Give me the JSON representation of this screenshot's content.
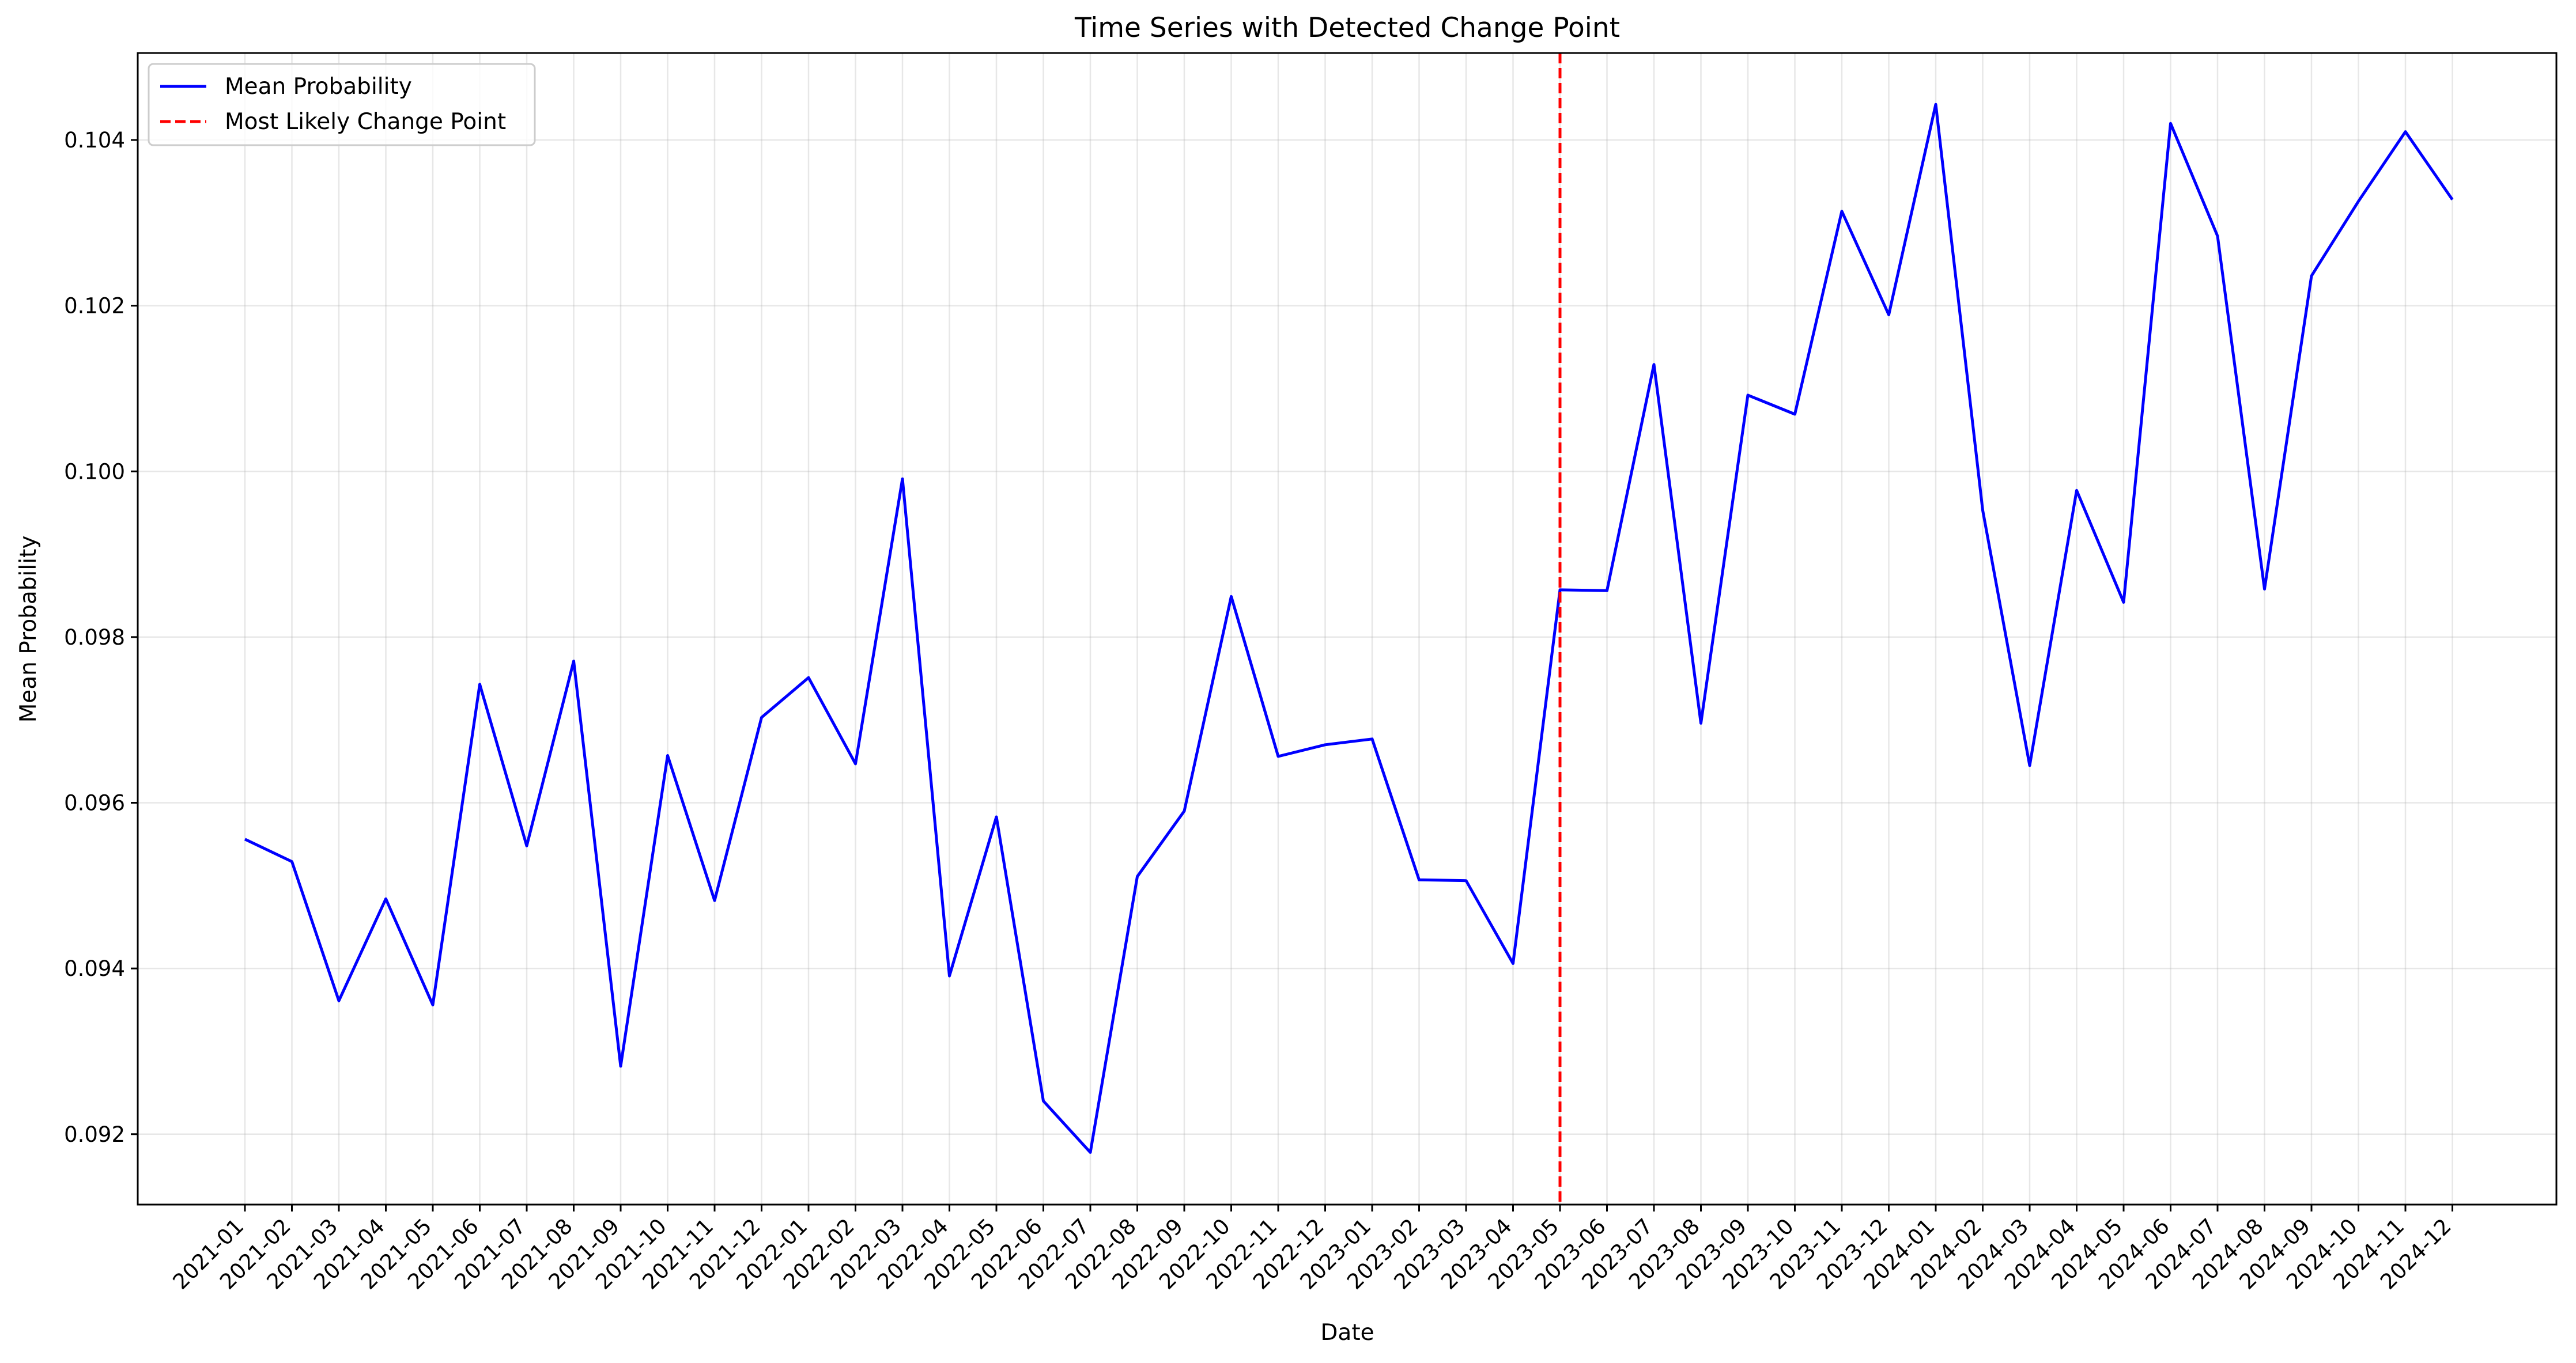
{
  "chart_data": {
    "type": "line",
    "title": "Time Series with Detected Change Point",
    "xlabel": "Date",
    "ylabel": "Mean Probability",
    "categories": [
      "2021-01",
      "2021-02",
      "2021-03",
      "2021-04",
      "2021-05",
      "2021-06",
      "2021-07",
      "2021-08",
      "2021-09",
      "2021-10",
      "2021-11",
      "2021-12",
      "2022-01",
      "2022-02",
      "2022-03",
      "2022-04",
      "2022-05",
      "2022-06",
      "2022-07",
      "2022-08",
      "2022-09",
      "2022-10",
      "2022-11",
      "2022-12",
      "2023-01",
      "2023-02",
      "2023-03",
      "2023-04",
      "2023-05",
      "2023-06",
      "2023-07",
      "2023-08",
      "2023-09",
      "2023-10",
      "2023-11",
      "2023-12",
      "2024-01",
      "2024-02",
      "2024-03",
      "2024-04",
      "2024-05",
      "2024-06",
      "2024-07",
      "2024-08",
      "2024-09",
      "2024-10",
      "2024-11",
      "2024-12"
    ],
    "series": [
      {
        "name": "Mean Probability",
        "color": "#0000ff",
        "values": [
          0.09556,
          0.09529,
          0.09361,
          0.09484,
          0.09356,
          0.09743,
          0.09548,
          0.09771,
          0.09282,
          0.09657,
          0.09482,
          0.09703,
          0.09751,
          0.09647,
          0.09991,
          0.09391,
          0.09583,
          0.0924,
          0.09178,
          0.09511,
          0.0959,
          0.09849,
          0.09656,
          0.0967,
          0.09677,
          0.09507,
          0.09506,
          0.09406,
          0.09857,
          0.09856,
          0.10129,
          0.09696,
          0.10092,
          0.10069,
          0.10314,
          0.10189,
          0.10443,
          0.09953,
          0.09645,
          0.09977,
          0.09842,
          0.1042,
          0.10284,
          0.09858,
          0.10236,
          0.10326,
          0.1041,
          0.10328
        ]
      }
    ],
    "change_point": {
      "label": "Most Likely Change Point",
      "category": "2023-05",
      "color": "#ff0000",
      "style": "dashed"
    },
    "yticks": [
      "0.092",
      "0.094",
      "0.096",
      "0.098",
      "0.100",
      "0.102",
      "0.104"
    ],
    "ylim": [
      0.09115,
      0.10505
    ],
    "grid": true,
    "legend_position": "upper-left"
  }
}
